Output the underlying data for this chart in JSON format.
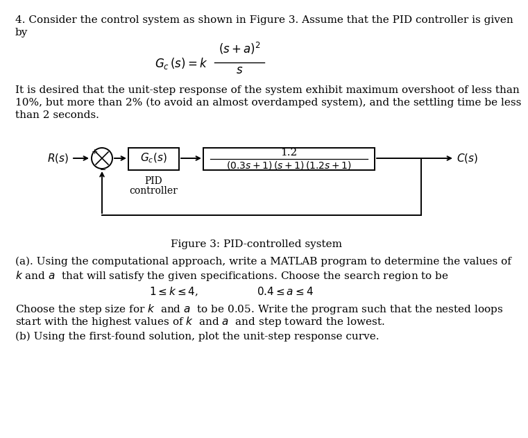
{
  "background_color": "#ffffff",
  "Rs_label": "$R(s)$",
  "Cs_label": "$C(s)$",
  "Gcs_label": "$G_c(s)$",
  "plant_num": "1.2",
  "plant_den": "$(0.3s + 1)\\,(s + 1)\\,(1.2s + 1)$",
  "pid_label1": "PID",
  "pid_label2": "controller",
  "fig_caption": "Figure 3: PID-controlled system",
  "text_fontsize": 11,
  "fig_width": 7.2,
  "fig_height": 6.11,
  "line1": "4. Consider the control system as shown in Figure 3. Assume that the PID controller is given",
  "line2": "by",
  "para1_l1": "It is desired that the unit-step response of the system exhibit maximum overshoot of less than",
  "para1_l2": "10%, but more than 2% (to avoid an almost overdamped system), and the settling time be less",
  "para1_l3": "than 2 seconds.",
  "parta_l1": "(a). Using the computational approach, write a MATLAB program to determine the values of",
  "parta_l2": "$k$ and $a$  that will satisfy the given specifications. Choose the search region to be",
  "constraint1": "$1\\leq k\\leq 4$,",
  "constraint2": "$0.4\\leq a\\leq 4$",
  "para2_l1": "Choose the step size for $k$  and $a$  to be 0.05. Write the program such that the nested loops",
  "para2_l2": "start with the highest values of $k$  and $a$  and step toward the lowest.",
  "partb": "(b) Using the first-found solution, plot the unit-step response curve."
}
